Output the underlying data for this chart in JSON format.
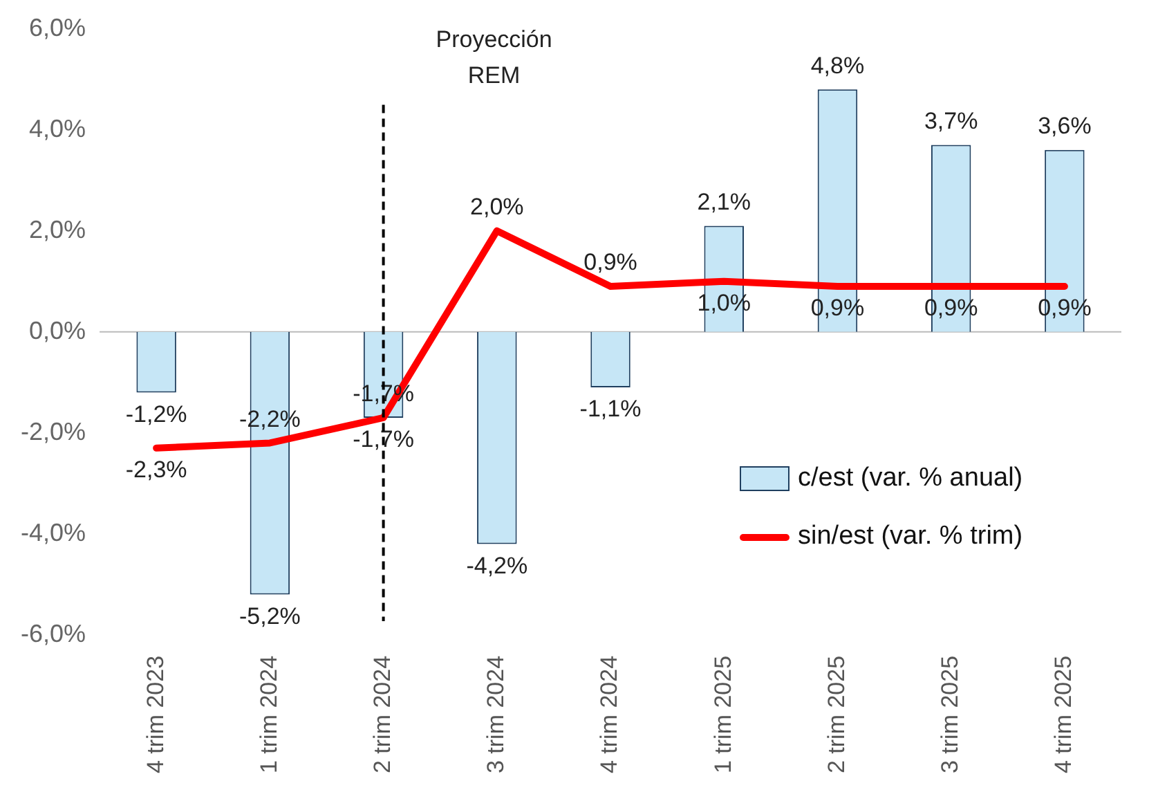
{
  "chart_data": {
    "type": "bar",
    "categories": [
      "4 trim 2023",
      "1 trim 2024",
      "2 trim 2024",
      "3 trim 2024",
      "4 trim 2024",
      "1 trim 2025",
      "2 trim 2025",
      "3 trim 2025",
      "4 trim 2025"
    ],
    "series": [
      {
        "name": "c/est (var. % anual)",
        "color": "#c6e6f6",
        "values": [
          -1.2,
          -5.2,
          -1.7,
          -4.2,
          -1.1,
          2.1,
          4.8,
          3.7,
          3.6
        ],
        "value_labels": [
          "-1,2%",
          "-5,2%",
          "-1,7%",
          "-4,2%",
          "-1,1%",
          "2,1%",
          "4,8%",
          "3,7%",
          "3,6%"
        ]
      },
      {
        "name": "sin/est (var. % trim)",
        "type": "line",
        "color": "#ff0000",
        "values": [
          -2.3,
          -2.2,
          -1.7,
          2.0,
          0.9,
          1.0,
          0.9,
          0.9,
          0.9
        ],
        "value_labels": [
          "-2,3%",
          "-2,2%",
          "-1,7%",
          "2,0%",
          "0,9%",
          "1,0%",
          "0,9%",
          "0,9%",
          "0,9%"
        ]
      }
    ],
    "ylim": [
      -6,
      6
    ],
    "yticks": [
      {
        "value": -6,
        "label": "-6,0%"
      },
      {
        "value": -4,
        "label": "-4,0%"
      },
      {
        "value": -2,
        "label": "-2,0%"
      },
      {
        "value": 0,
        "label": "0,0%"
      },
      {
        "value": 2,
        "label": "2,0%"
      },
      {
        "value": 4,
        "label": "4,0%"
      },
      {
        "value": 6,
        "label": "6,0%"
      }
    ],
    "ref_lines": [
      {
        "axis": "x",
        "value": "2 trim 2024",
        "label": "Proyección REM",
        "line_style": "dashed",
        "color": "#000000"
      }
    ],
    "legend": "bottom right",
    "grid": false,
    "marker": "none"
  }
}
